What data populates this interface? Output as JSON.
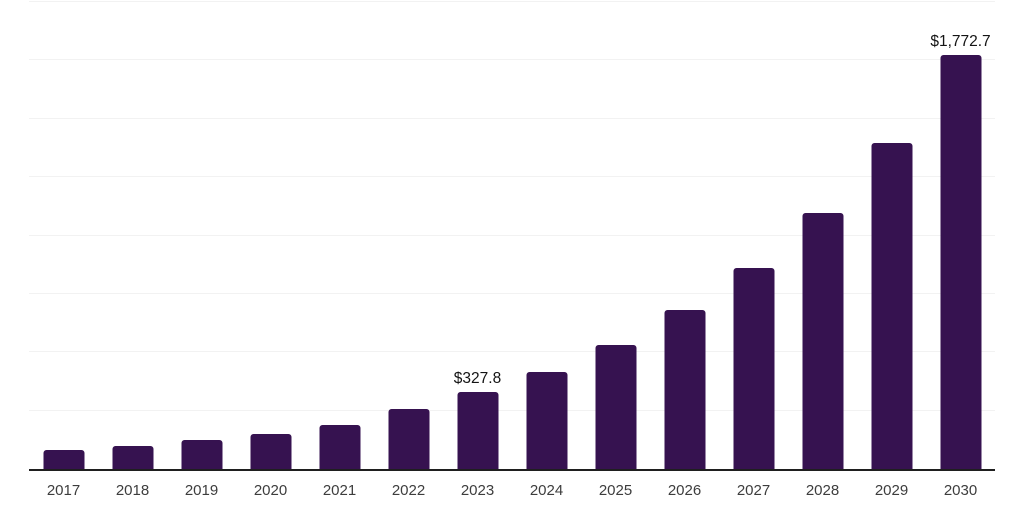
{
  "chart_data": {
    "type": "bar",
    "title": "",
    "xlabel": "",
    "ylabel": "",
    "categories": [
      "2017",
      "2018",
      "2019",
      "2020",
      "2021",
      "2022",
      "2023",
      "2024",
      "2025",
      "2026",
      "2027",
      "2028",
      "2029",
      "2030"
    ],
    "values": [
      81,
      97,
      124,
      150,
      190,
      258,
      327.8,
      417,
      529,
      680,
      860,
      1098,
      1395,
      1772.7
    ],
    "data_labels": [
      "",
      "",
      "",
      "",
      "",
      "",
      "$327.8",
      "",
      "",
      "",
      "",
      "",
      "",
      "$1,772.7"
    ],
    "ylim": [
      0,
      2000
    ],
    "grid": true,
    "gridline_interval": 250,
    "legend": false,
    "colors": {
      "bar": "#361250",
      "gridline": "#f2f2f2",
      "axis": "#1f1f1f",
      "tick_label": "#3d3d3d",
      "value_label": "#141414",
      "background": "#ffffff"
    }
  }
}
